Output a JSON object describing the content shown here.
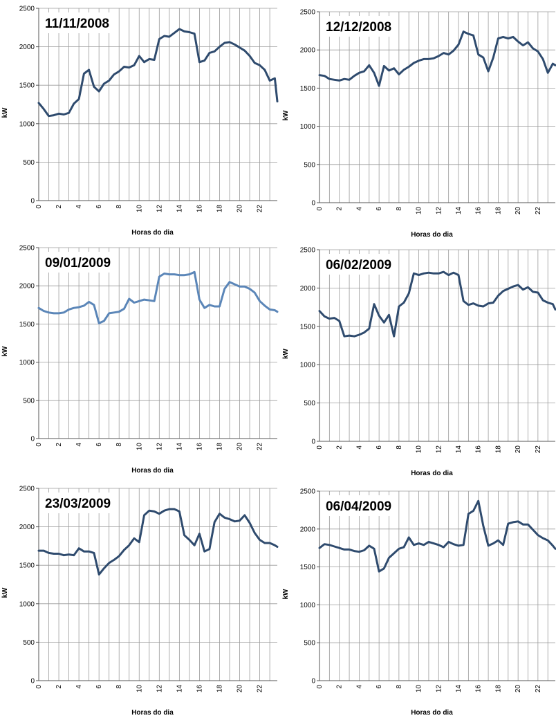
{
  "chart_data": [
    {
      "type": "line",
      "title": "11/11/2008",
      "xlabel": "Horas do dia",
      "ylabel": "kW",
      "xlim": [
        0,
        23.75
      ],
      "ylim": [
        0,
        2500
      ],
      "yticks": [
        0,
        500,
        1000,
        1500,
        2000,
        2500
      ],
      "xticks": [
        0,
        2,
        4,
        6,
        8,
        10,
        12,
        14,
        16,
        18,
        20,
        22
      ],
      "grid": true,
      "line_color": "#2f4b6e",
      "series": [
        {
          "x": [
            0,
            0.5,
            1,
            1.5,
            2,
            2.5,
            3,
            3.5,
            4,
            4.5,
            5,
            5.5,
            6,
            6.5,
            7,
            7.5,
            8,
            8.5,
            9,
            9.5,
            10,
            10.5,
            11,
            11.5,
            12,
            12.5,
            13,
            13.5,
            14,
            14.5,
            15,
            15.5,
            16,
            16.5,
            17,
            17.5,
            18,
            18.5,
            19,
            19.5,
            20,
            20.5,
            21,
            21.5,
            22,
            22.5,
            23,
            23.5,
            23.75
          ],
          "y": [
            1270,
            1190,
            1100,
            1110,
            1130,
            1120,
            1140,
            1260,
            1320,
            1650,
            1700,
            1480,
            1420,
            1520,
            1560,
            1640,
            1680,
            1740,
            1730,
            1760,
            1880,
            1800,
            1840,
            1830,
            2100,
            2140,
            2130,
            2180,
            2230,
            2200,
            2190,
            2170,
            1800,
            1820,
            1920,
            1940,
            2000,
            2050,
            2060,
            2030,
            1990,
            1950,
            1880,
            1790,
            1760,
            1700,
            1560,
            1590,
            1290
          ]
        }
      ]
    },
    {
      "type": "line",
      "title": "12/12/2008",
      "xlabel": "Horas do dia",
      "ylabel": "kW",
      "xlim": [
        0,
        23.75
      ],
      "ylim": [
        0,
        2500
      ],
      "yticks": [
        0,
        500,
        1000,
        1500,
        2000,
        2500
      ],
      "xticks": [
        0,
        2,
        4,
        6,
        8,
        10,
        12,
        14,
        16,
        18,
        20,
        22
      ],
      "grid": true,
      "line_color": "#2f4b6e",
      "series": [
        {
          "x": [
            0,
            0.5,
            1,
            1.5,
            2,
            2.5,
            3,
            3.5,
            4,
            4.5,
            5,
            5.5,
            6,
            6.5,
            7,
            7.5,
            8,
            8.5,
            9,
            9.5,
            10,
            10.5,
            11,
            11.5,
            12,
            12.5,
            13,
            13.5,
            14,
            14.5,
            15,
            15.5,
            16,
            16.5,
            17,
            17.5,
            18,
            18.5,
            19,
            19.5,
            20,
            20.5,
            21,
            21.5,
            22,
            22.5,
            23,
            23.5,
            23.75
          ],
          "y": [
            1670,
            1660,
            1620,
            1610,
            1600,
            1620,
            1610,
            1660,
            1700,
            1720,
            1800,
            1700,
            1530,
            1790,
            1730,
            1760,
            1680,
            1740,
            1780,
            1830,
            1860,
            1880,
            1880,
            1890,
            1920,
            1960,
            1940,
            1990,
            2070,
            2240,
            2210,
            2190,
            1940,
            1900,
            1720,
            1900,
            2150,
            2170,
            2150,
            2170,
            2110,
            2060,
            2100,
            2020,
            1980,
            1880,
            1700,
            1820,
            1800
          ]
        }
      ]
    },
    {
      "type": "line",
      "title": "09/01/2009",
      "xlabel": "Horas do dia",
      "ylabel": "kW",
      "xlim": [
        0,
        23.75
      ],
      "ylim": [
        0,
        2500
      ],
      "yticks": [
        0,
        500,
        1000,
        1500,
        2000,
        2500
      ],
      "xticks": [
        0,
        2,
        4,
        6,
        8,
        10,
        12,
        14,
        16,
        18,
        20,
        22
      ],
      "grid": true,
      "line_color": "#5b86b8",
      "series": [
        {
          "x": [
            0,
            0.5,
            1,
            1.5,
            2,
            2.5,
            3,
            3.5,
            4,
            4.5,
            5,
            5.5,
            6,
            6.5,
            7,
            7.5,
            8,
            8.5,
            9,
            9.5,
            10,
            10.5,
            11,
            11.5,
            12,
            12.5,
            13,
            13.5,
            14,
            14.5,
            15,
            15.5,
            16,
            16.5,
            17,
            17.5,
            18,
            18.5,
            19,
            19.5,
            20,
            20.5,
            21,
            21.5,
            22,
            22.5,
            23,
            23.5,
            23.75
          ],
          "y": [
            1710,
            1670,
            1650,
            1640,
            1640,
            1650,
            1690,
            1710,
            1720,
            1740,
            1790,
            1750,
            1510,
            1540,
            1640,
            1650,
            1660,
            1700,
            1830,
            1780,
            1800,
            1820,
            1810,
            1800,
            2120,
            2160,
            2150,
            2150,
            2140,
            2140,
            2150,
            2180,
            1820,
            1710,
            1750,
            1730,
            1730,
            1960,
            2050,
            2020,
            1990,
            1990,
            1960,
            1910,
            1800,
            1740,
            1690,
            1680,
            1660
          ]
        }
      ]
    },
    {
      "type": "line",
      "title": "06/02/2009",
      "xlabel": "Horas do dia",
      "ylabel": "kW",
      "xlim": [
        0,
        23.75
      ],
      "ylim": [
        0,
        2500
      ],
      "yticks": [
        0,
        500,
        1000,
        1500,
        2000,
        2500
      ],
      "xticks": [
        0,
        2,
        4,
        6,
        8,
        10,
        12,
        14,
        16,
        18,
        20,
        22
      ],
      "grid": true,
      "line_color": "#2f4b6e",
      "series": [
        {
          "x": [
            0,
            0.5,
            1,
            1.5,
            2,
            2.5,
            3,
            3.5,
            4,
            4.5,
            5,
            5.5,
            6,
            6.5,
            7,
            7.5,
            8,
            8.5,
            9,
            9.5,
            10,
            10.5,
            11,
            11.5,
            12,
            12.5,
            13,
            13.5,
            14,
            14.5,
            15,
            15.5,
            16,
            16.5,
            17,
            17.5,
            18,
            18.5,
            19,
            19.5,
            20,
            20.5,
            21,
            21.5,
            22,
            22.5,
            23,
            23.5,
            23.75
          ],
          "y": [
            1700,
            1630,
            1600,
            1610,
            1570,
            1370,
            1380,
            1370,
            1390,
            1420,
            1470,
            1790,
            1640,
            1550,
            1650,
            1370,
            1760,
            1810,
            1930,
            2190,
            2170,
            2190,
            2200,
            2190,
            2190,
            2210,
            2170,
            2200,
            2170,
            1830,
            1780,
            1800,
            1770,
            1760,
            1800,
            1810,
            1900,
            1960,
            1990,
            2020,
            2040,
            1980,
            2010,
            1950,
            1940,
            1840,
            1810,
            1790,
            1720
          ]
        }
      ]
    },
    {
      "type": "line",
      "title": "23/03/2009",
      "xlabel": "Horas do dia",
      "ylabel": "kW",
      "xlim": [
        0,
        23.75
      ],
      "ylim": [
        0,
        2500
      ],
      "yticks": [
        0,
        500,
        1000,
        1500,
        2000,
        2500
      ],
      "xticks": [
        0,
        2,
        4,
        6,
        8,
        10,
        12,
        14,
        16,
        18,
        20,
        22
      ],
      "grid": true,
      "line_color": "#2f4b6e",
      "series": [
        {
          "x": [
            0,
            0.5,
            1,
            1.5,
            2,
            2.5,
            3,
            3.5,
            4,
            4.5,
            5,
            5.5,
            6,
            6.5,
            7,
            7.5,
            8,
            8.5,
            9,
            9.5,
            10,
            10.5,
            11,
            11.5,
            12,
            12.5,
            13,
            13.5,
            14,
            14.5,
            15,
            15.5,
            16,
            16.5,
            17,
            17.5,
            18,
            18.5,
            19,
            19.5,
            20,
            20.5,
            21,
            21.5,
            22,
            22.5,
            23,
            23.5,
            23.75
          ],
          "y": [
            1690,
            1690,
            1660,
            1650,
            1650,
            1630,
            1640,
            1630,
            1720,
            1680,
            1680,
            1660,
            1380,
            1460,
            1530,
            1570,
            1620,
            1700,
            1760,
            1850,
            1800,
            2150,
            2210,
            2200,
            2170,
            2210,
            2230,
            2230,
            2200,
            1890,
            1830,
            1760,
            1910,
            1680,
            1710,
            2060,
            2170,
            2120,
            2100,
            2070,
            2080,
            2150,
            2050,
            1920,
            1830,
            1790,
            1790,
            1760,
            1740
          ]
        }
      ]
    },
    {
      "type": "line",
      "title": "06/04/2009",
      "xlabel": "Horas do dia",
      "ylabel": "kW",
      "xlim": [
        0,
        23.75
      ],
      "ylim": [
        0,
        2500
      ],
      "yticks": [
        0,
        500,
        1000,
        1500,
        2000,
        2500
      ],
      "xticks": [
        0,
        2,
        4,
        6,
        8,
        10,
        12,
        14,
        16,
        18,
        20,
        22
      ],
      "grid": true,
      "line_color": "#2f4b6e",
      "series": [
        {
          "x": [
            0,
            0.5,
            1,
            1.5,
            2,
            2.5,
            3,
            3.5,
            4,
            4.5,
            5,
            5.5,
            6,
            6.5,
            7,
            7.5,
            8,
            8.5,
            9,
            9.5,
            10,
            10.5,
            11,
            11.5,
            12,
            12.5,
            13,
            13.5,
            14,
            14.5,
            15,
            15.5,
            16,
            16.5,
            17,
            17.5,
            18,
            18.5,
            19,
            19.5,
            20,
            20.5,
            21,
            21.5,
            22,
            22.5,
            23,
            23.5,
            23.75
          ],
          "y": [
            1750,
            1800,
            1790,
            1770,
            1750,
            1730,
            1730,
            1710,
            1700,
            1720,
            1780,
            1740,
            1440,
            1480,
            1620,
            1680,
            1740,
            1760,
            1890,
            1790,
            1810,
            1790,
            1830,
            1810,
            1790,
            1760,
            1830,
            1800,
            1780,
            1790,
            2200,
            2240,
            2370,
            2040,
            1780,
            1810,
            1850,
            1790,
            2070,
            2090,
            2100,
            2060,
            2060,
            1990,
            1920,
            1880,
            1850,
            1780,
            1740
          ]
        }
      ]
    }
  ]
}
